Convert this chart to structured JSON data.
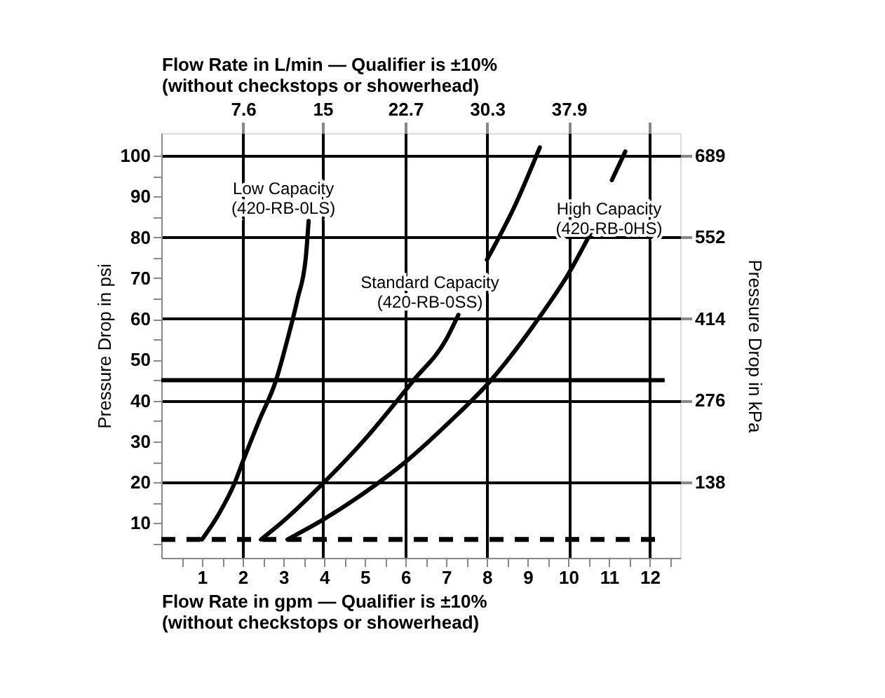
{
  "chart_data": {
    "type": "line",
    "x2label": [
      "Flow Rate in L/min — Qualifier is ±10%",
      "(without checkstops or showerhead)"
    ],
    "xlabel": [
      "Flow Rate in gpm — Qualifier is ±10%",
      "(without checkstops or showerhead)"
    ],
    "ylabel": "Pressure Drop in psi",
    "y2label": "Pressure Drop in kPa",
    "series": [
      {
        "name": "Low Capacity\n(420-RB-0LS)",
        "color": "#000000",
        "x": [
          1,
          1.4,
          1.81,
          2,
          2.4,
          2.82,
          3.1,
          3.35,
          3.55,
          3.62
        ],
        "values": [
          6,
          12,
          20,
          25,
          35,
          45,
          55,
          65,
          75,
          84
        ]
      },
      {
        "name": "Standard Capacity\n(420-RB-0SS)",
        "color": "#000000",
        "x": [
          2.45,
          3,
          4,
          5,
          6.2,
          7,
          7.3,
          7.6,
          8.0,
          8.7,
          9.3
        ],
        "values": [
          6,
          10.5,
          20,
          30.5,
          45,
          55,
          61,
          null,
          74.5,
          88,
          102
        ]
      },
      {
        "name": "High Capacity\n(420-RB-0HS)",
        "color": "#000000",
        "x": [
          3.1,
          4,
          5,
          6,
          7,
          8.1,
          9.26,
          10,
          10.6,
          10.8,
          11.07,
          11.4
        ],
        "values": [
          6,
          11,
          17.5,
          25,
          34,
          45,
          60,
          71,
          82,
          null,
          94,
          101
        ]
      }
    ],
    "xlim": [
      0,
      12.75
    ],
    "ylim": [
      1.5,
      105.5
    ],
    "xticks": [
      {
        "value": 0.5,
        "label": null
      },
      1,
      {
        "value": 1.5,
        "label": null
      },
      2,
      {
        "value": 2.5,
        "label": null
      },
      3,
      {
        "value": 3.5,
        "label": null
      },
      4,
      {
        "value": 4.5,
        "label": null
      },
      5,
      {
        "value": 5.5,
        "label": null
      },
      6,
      {
        "value": 6.5,
        "label": null
      },
      7,
      {
        "value": 7.5,
        "label": null
      },
      8,
      {
        "value": 8.5,
        "label": null
      },
      9,
      {
        "value": 9.5,
        "label": null
      },
      10,
      {
        "value": 10.5,
        "label": null
      },
      11,
      {
        "value": 11.5,
        "label": null
      },
      12,
      {
        "value": 12.5,
        "label": null
      }
    ],
    "yticks": [
      {
        "value": 5,
        "label": null
      },
      10,
      {
        "value": 15,
        "label": null
      },
      20,
      {
        "value": 25,
        "label": null
      },
      30,
      {
        "value": 35,
        "label": null
      },
      40,
      {
        "value": 45,
        "label": null
      },
      50,
      {
        "value": 55,
        "label": null
      },
      60,
      {
        "value": 65,
        "label": null
      },
      70,
      {
        "value": 75,
        "label": null
      },
      80,
      {
        "value": 85,
        "label": null
      },
      90,
      {
        "value": 95,
        "label": null
      },
      100
    ],
    "x2lim": [
      0,
      48.26
    ],
    "x2ticks": [
      7.6,
      15,
      22.7,
      30.3,
      37.9,
      {
        "value": 45.4,
        "label": null
      }
    ],
    "y2lim": [
      10.3,
      727.4
    ],
    "y2ticks": [
      138,
      276,
      414,
      552,
      689
    ],
    "ref_lines": [
      {
        "axis": "y",
        "value": 45,
        "label": null,
        "line_style": "solid"
      },
      {
        "axis": "y",
        "value": 6,
        "label": null,
        "line_style": "dashed"
      }
    ],
    "grid": true,
    "legend": false,
    "marker": "none",
    "line_style": "solid"
  }
}
